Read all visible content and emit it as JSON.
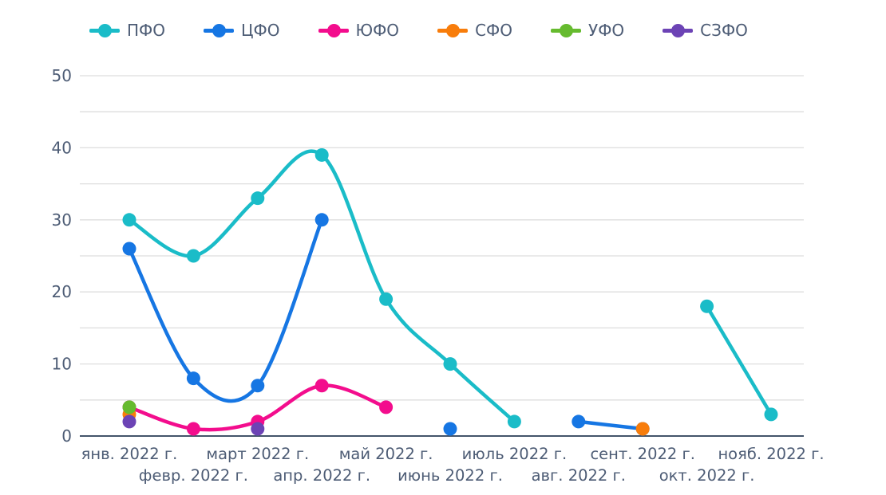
{
  "chart_data": {
    "type": "line",
    "title": "",
    "xlabel": "",
    "ylabel": "",
    "categories": [
      "янв. 2022 г.",
      "февр. 2022 г.",
      "март 2022 г.",
      "апр. 2022 г.",
      "май 2022 г.",
      "июнь 2022 г.",
      "июль 2022 г.",
      "авг. 2022 г.",
      "сент. 2022 г.",
      "окт. 2022 г.",
      "нояб. 2022 г."
    ],
    "series": [
      {
        "name": "ПФО",
        "color": "#1ABCC8",
        "values": [
          30,
          25,
          33,
          39,
          19,
          10,
          2,
          null,
          null,
          18,
          3
        ]
      },
      {
        "name": "ЦФО",
        "color": "#1676E3",
        "values": [
          26,
          8,
          7,
          30,
          null,
          1,
          null,
          2,
          1,
          null,
          null
        ]
      },
      {
        "name": "ЮФО",
        "color": "#F30D8D",
        "values": [
          4,
          1,
          2,
          7,
          4,
          null,
          null,
          null,
          null,
          null,
          null
        ]
      },
      {
        "name": "СФО",
        "color": "#F87D0B",
        "values": [
          3,
          null,
          null,
          null,
          null,
          null,
          null,
          null,
          1,
          null,
          null
        ]
      },
      {
        "name": "УФО",
        "color": "#66BB2F",
        "values": [
          4,
          null,
          null,
          null,
          null,
          null,
          null,
          null,
          null,
          null,
          null
        ]
      },
      {
        "name": "СЗФО",
        "color": "#6C43B5",
        "values": [
          2,
          null,
          1,
          null,
          null,
          null,
          null,
          null,
          null,
          null,
          null
        ]
      }
    ],
    "yticks_labeled": [
      0,
      10,
      20,
      30,
      40,
      50
    ],
    "grid_step": 5,
    "ylim": [
      0,
      50
    ],
    "grid": true,
    "legend_position": "top",
    "line_style": "spline",
    "connect_gaps": false
  },
  "styles": {
    "text_color": "#4D5C75",
    "axis_line_color": "#44546A",
    "grid_color": "#DEDEDE",
    "background": "#FFFFFF"
  }
}
